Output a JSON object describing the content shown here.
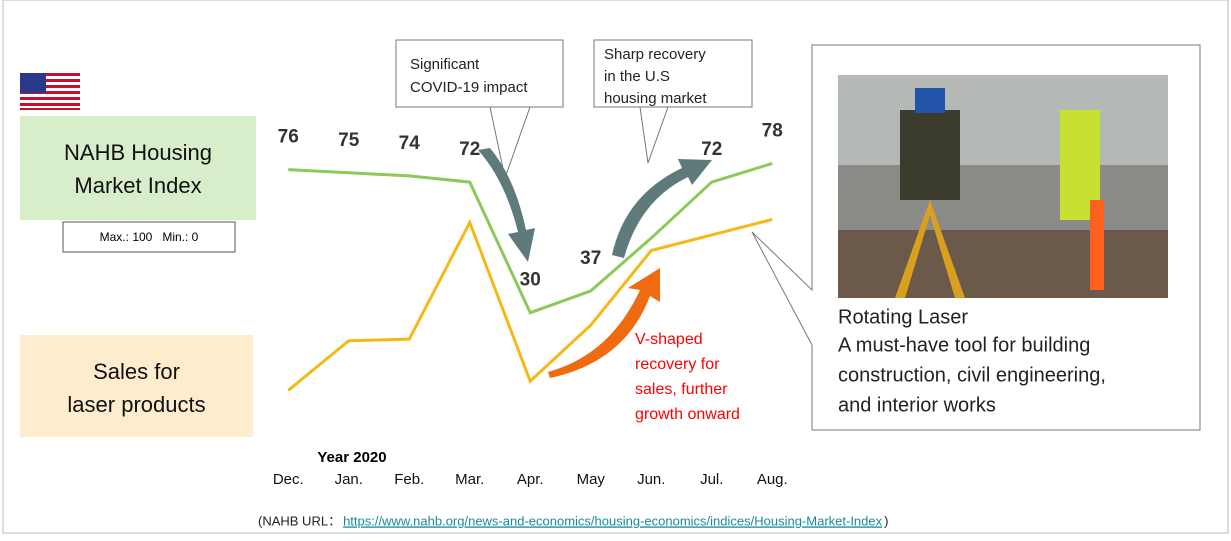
{
  "chart_data": {
    "type": "line",
    "categories": [
      "Dec.",
      "Jan.",
      "Feb.",
      "Mar.",
      "Apr.",
      "May",
      "Jun.",
      "Jul.",
      "Aug."
    ],
    "x_title": "Year 2020",
    "ylim": [
      0,
      100
    ],
    "series": [
      {
        "name": [
          "NAHB Housing",
          "Market Index"
        ],
        "color": "#8dc85a",
        "fill": "#d8eecb",
        "values": [
          76,
          75,
          74,
          72,
          30,
          37,
          54,
          72,
          78
        ],
        "value_labels": [
          "76",
          "75",
          "74",
          "72",
          "30",
          "37",
          null,
          "72",
          "78"
        ]
      },
      {
        "name": [
          "Sales for",
          "laser products"
        ],
        "color": "#f5b817",
        "fill": "#fdeccd",
        "values": [
          5,
          21,
          21.5,
          59,
          8,
          26,
          50,
          55,
          60
        ]
      }
    ],
    "range_note": "Max.: 100   Min.: 0",
    "callouts": [
      [
        "Significant",
        "COVID-19 impact"
      ],
      [
        "Sharp recovery",
        "in the U.S",
        "housing market"
      ]
    ],
    "sales_note": [
      "V-shaped",
      "recovery for",
      "sales, further",
      "growth onward"
    ],
    "product": [
      "Rotating Laser",
      "A must-have tool for building",
      "construction, civil engineering,",
      "and interior works"
    ],
    "source": {
      "prefix": "(NAHB URL：",
      "url": "https://www.nahb.org/news-and-economics/housing-economics/indices/Housing-Market-Index",
      "suffix": ")"
    }
  }
}
